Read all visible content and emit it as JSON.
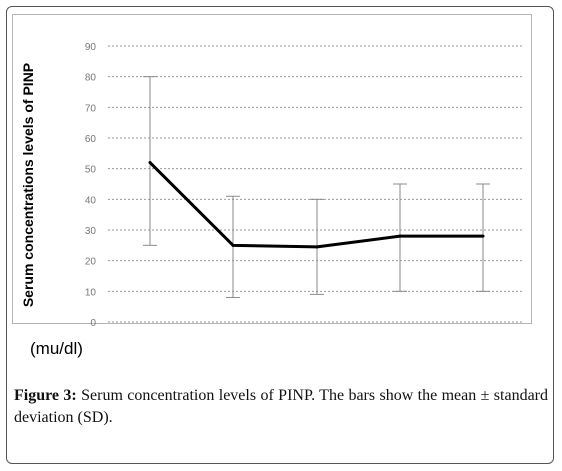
{
  "chart_data": {
    "type": "line",
    "ylabel": "Serum concentrations levels of PINP",
    "yunit": "(mu/dl)",
    "ylim": [
      0,
      90
    ],
    "yticks": [
      0,
      10,
      20,
      30,
      40,
      50,
      60,
      70,
      80,
      90
    ],
    "grid": "horizontal dotted",
    "x": [
      1,
      2,
      3,
      4,
      5
    ],
    "series": [
      {
        "values": [
          52,
          25,
          24.5,
          28,
          28
        ],
        "error_low": [
          25,
          8,
          9,
          10,
          10
        ],
        "error_high": [
          80,
          41,
          40,
          45,
          45
        ]
      }
    ],
    "colors": {
      "line": "#000000",
      "errorbar": "#8a8a8a",
      "grid": "#9a9a9a",
      "tick": "#777777"
    }
  },
  "caption": {
    "label": "Figure 3:",
    "text": " Serum concentration levels of PINP. The bars show the mean ± standard deviation (SD)."
  }
}
